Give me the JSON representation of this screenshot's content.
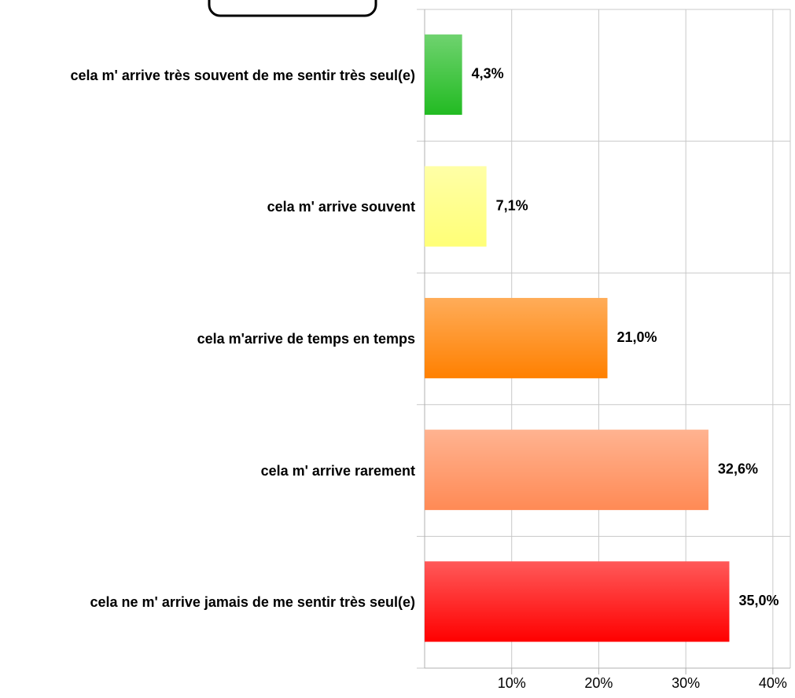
{
  "chart_data": {
    "type": "bar",
    "orientation": "horizontal",
    "categories": [
      "cela m' arrive très souvent de me sentir très seul(e)",
      "cela m' arrive souvent",
      "cela m'arrive de temps en temps",
      "cela m' arrive rarement",
      "cela ne m' arrive jamais de me sentir très seul(e)"
    ],
    "values": [
      4.3,
      7.1,
      21.0,
      32.6,
      35.0
    ],
    "value_labels": [
      "4,3%",
      "7,1%",
      "21,0%",
      "32,6%",
      "35,0%"
    ],
    "colors": [
      "#22bb22",
      "#ffff77",
      "#ff8000",
      "#ff8a55",
      "#ff0000"
    ],
    "xlim": [
      0,
      42
    ],
    "xticks": [
      {
        "value": 10,
        "label": "10%"
      },
      {
        "value": 20,
        "label": "20%"
      },
      {
        "value": 30,
        "label": "30%"
      },
      {
        "value": 40,
        "label": "40%"
      }
    ],
    "grid": true
  }
}
